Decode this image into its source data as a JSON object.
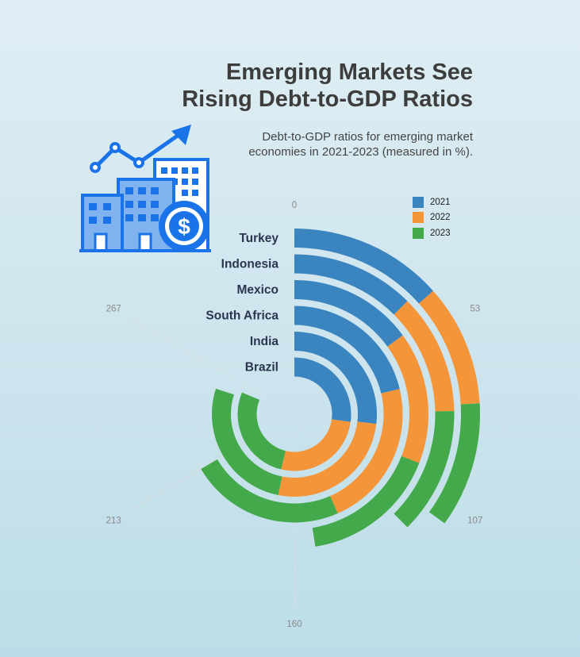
{
  "title_line1": "Emerging Markets See",
  "title_line2": "Rising Debt-to-GDP Ratios",
  "subtitle_line1": "Debt-to-GDP ratios for emerging market",
  "subtitle_line2": "economies in 2021-2023 (measured in %).",
  "icon": "economy-buildings-growth-icon",
  "colors": {
    "2021": "#3a85bf",
    "2022": "#f5953a",
    "2023": "#44a94a",
    "axis_text": "#8a8a8a",
    "label_text": "#2a3550"
  },
  "chart_data": {
    "type": "radial-stacked-bar",
    "title": "Emerging Markets See Rising Debt-to-GDP Ratios",
    "subtitle": "Debt-to-GDP ratios for emerging market economies in 2021-2023 (measured in %).",
    "categories": [
      "Turkey",
      "Indonesia",
      "Mexico",
      "South Africa",
      "India",
      "Brazil"
    ],
    "series": [
      {
        "name": "2021",
        "values": [
          43,
          40,
          48,
          68,
          86,
          87
        ]
      },
      {
        "name": "2022",
        "values": [
          34,
          39,
          51,
          71,
          84,
          85
        ]
      },
      {
        "name": "2023",
        "values": [
          35,
          41,
          53,
          74,
          86,
          88
        ]
      }
    ],
    "axis_ticks": [
      "0",
      "53",
      "107",
      "160",
      "213",
      "267"
    ],
    "axis_max": 320,
    "legend": {
      "position": "top-right",
      "items": [
        "2021",
        "2022",
        "2023"
      ]
    }
  }
}
